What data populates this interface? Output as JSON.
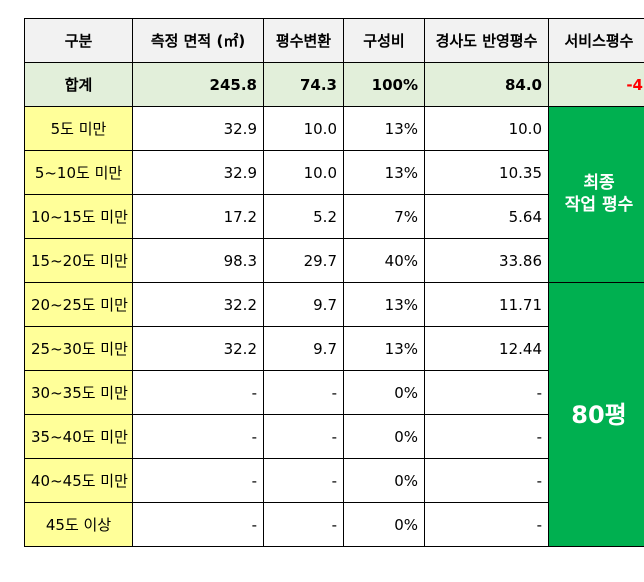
{
  "headers": [
    "구분",
    "측정 면적 (㎡)",
    "평수변환",
    "구성비",
    "경사도 반영평수",
    "서비스평수"
  ],
  "total": {
    "label": "합계",
    "area": "245.8",
    "pyeong": "74.3",
    "ratio": "100%",
    "adjusted": "84.0",
    "service": "-4"
  },
  "rows": [
    {
      "label": "5도 미만",
      "area": "32.9",
      "pyeong": "10.0",
      "ratio": "13%",
      "adjusted": "10.0"
    },
    {
      "label": "5~10도 미만",
      "area": "32.9",
      "pyeong": "10.0",
      "ratio": "13%",
      "adjusted": "10.35"
    },
    {
      "label": "10~15도 미만",
      "area": "17.2",
      "pyeong": "5.2",
      "ratio": "7%",
      "adjusted": "5.64"
    },
    {
      "label": "15~20도 미만",
      "area": "98.3",
      "pyeong": "29.7",
      "ratio": "40%",
      "adjusted": "33.86"
    },
    {
      "label": "20~25도 미만",
      "area": "32.2",
      "pyeong": "9.7",
      "ratio": "13%",
      "adjusted": "11.71"
    },
    {
      "label": "25~30도 미만",
      "area": "32.2",
      "pyeong": "9.7",
      "ratio": "13%",
      "adjusted": "12.44"
    },
    {
      "label": "30~35도 미만",
      "area": "-",
      "pyeong": "-",
      "ratio": "0%",
      "adjusted": "-"
    },
    {
      "label": "35~40도 미만",
      "area": "-",
      "pyeong": "-",
      "ratio": "0%",
      "adjusted": "-"
    },
    {
      "label": "40~45도 미만",
      "area": "-",
      "pyeong": "-",
      "ratio": "0%",
      "adjusted": "-"
    },
    {
      "label": "45도 이상",
      "area": "-",
      "pyeong": "-",
      "ratio": "0%",
      "adjusted": "-"
    }
  ],
  "final": {
    "line1": "최종",
    "line2": "작업 평수",
    "value": "80평"
  },
  "colors": {
    "header_bg": "#f2f2f2",
    "total_bg": "#e2efda",
    "label_bg": "#ffff99",
    "final_bg": "#00b050",
    "service_text": "#ff0000"
  }
}
